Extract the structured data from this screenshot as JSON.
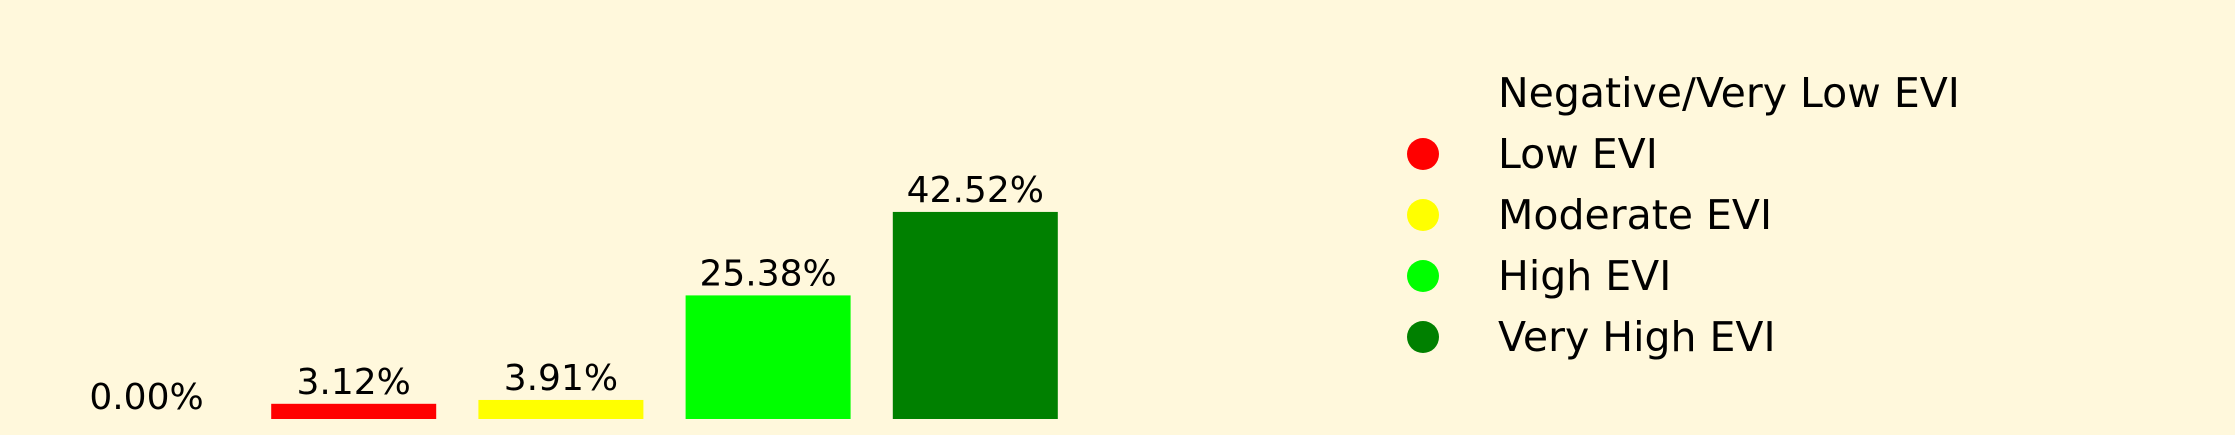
{
  "chart_data": {
    "type": "bar",
    "categories": [
      "Negative/Very Low EVI",
      "Low EVI",
      "Moderate EVI",
      "High EVI",
      "Very High EVI"
    ],
    "values": [
      0.0,
      3.12,
      3.91,
      25.38,
      42.52
    ],
    "value_labels": [
      "0.00%",
      "3.12%",
      "3.91%",
      "25.38%",
      "42.52%"
    ],
    "colors": [
      "#fff8dc",
      "#ff0000",
      "#ffff00",
      "#00ff00",
      "#008000"
    ],
    "legend_position": "right",
    "grid": false,
    "axes_visible": false,
    "background": "#fff8dc",
    "legend": [
      {
        "label": "Negative/Very Low EVI",
        "color": "#fff8dc"
      },
      {
        "label": "Low EVI",
        "color": "#ff0000"
      },
      {
        "label": "Moderate EVI",
        "color": "#ffff00"
      },
      {
        "label": "High EVI",
        "color": "#00ff00"
      },
      {
        "label": "Very High EVI",
        "color": "#008000"
      }
    ]
  }
}
